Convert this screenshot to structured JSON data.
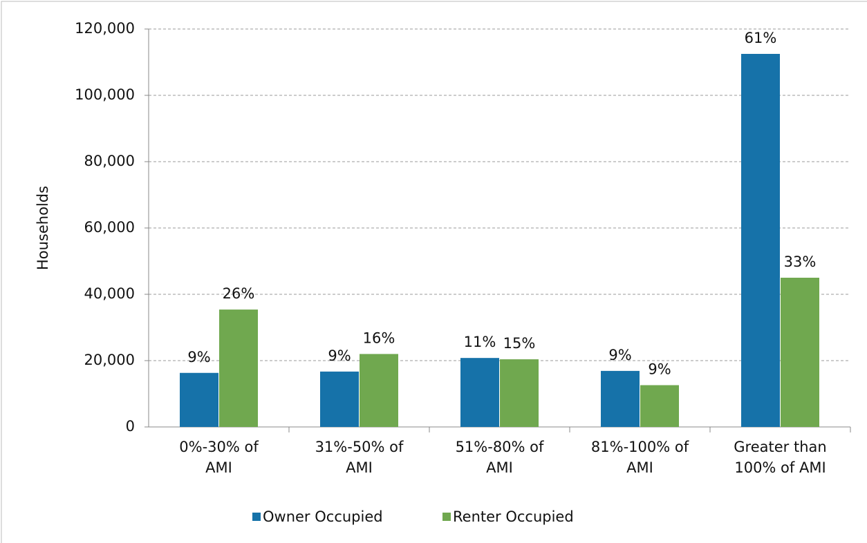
{
  "chart_data": {
    "type": "bar",
    "y_label": "Households",
    "categories": [
      "0%-30% of\nAMI",
      "31%-50% of\nAMI",
      "51%-80% of\nAMI",
      "81%-100% of\nAMI",
      "Greater than\n100% of AMI"
    ],
    "series": [
      {
        "name": "Owner Occupied",
        "color": "#1672a9",
        "values": [
          16300,
          16700,
          20800,
          16900,
          112500
        ],
        "share_labels": [
          "9%",
          "9%",
          "11%",
          "9%",
          "61%"
        ]
      },
      {
        "name": "Renter Occupied",
        "color": "#70a84f",
        "values": [
          35400,
          22000,
          20400,
          12600,
          45000
        ],
        "share_labels": [
          "26%",
          "16%",
          "15%",
          "9%",
          "33%"
        ]
      }
    ],
    "ylim": [
      0,
      120000
    ],
    "yticks": [
      0,
      {
        "value": 20000,
        "label": "20,000"
      },
      {
        "value": 40000,
        "label": "40,000"
      },
      {
        "value": 60000,
        "label": "60,000"
      },
      {
        "value": 80000,
        "label": "80,000"
      },
      {
        "value": 100000,
        "label": "100,000"
      },
      {
        "value": 120000,
        "label": "120,000"
      }
    ],
    "grid": true
  }
}
